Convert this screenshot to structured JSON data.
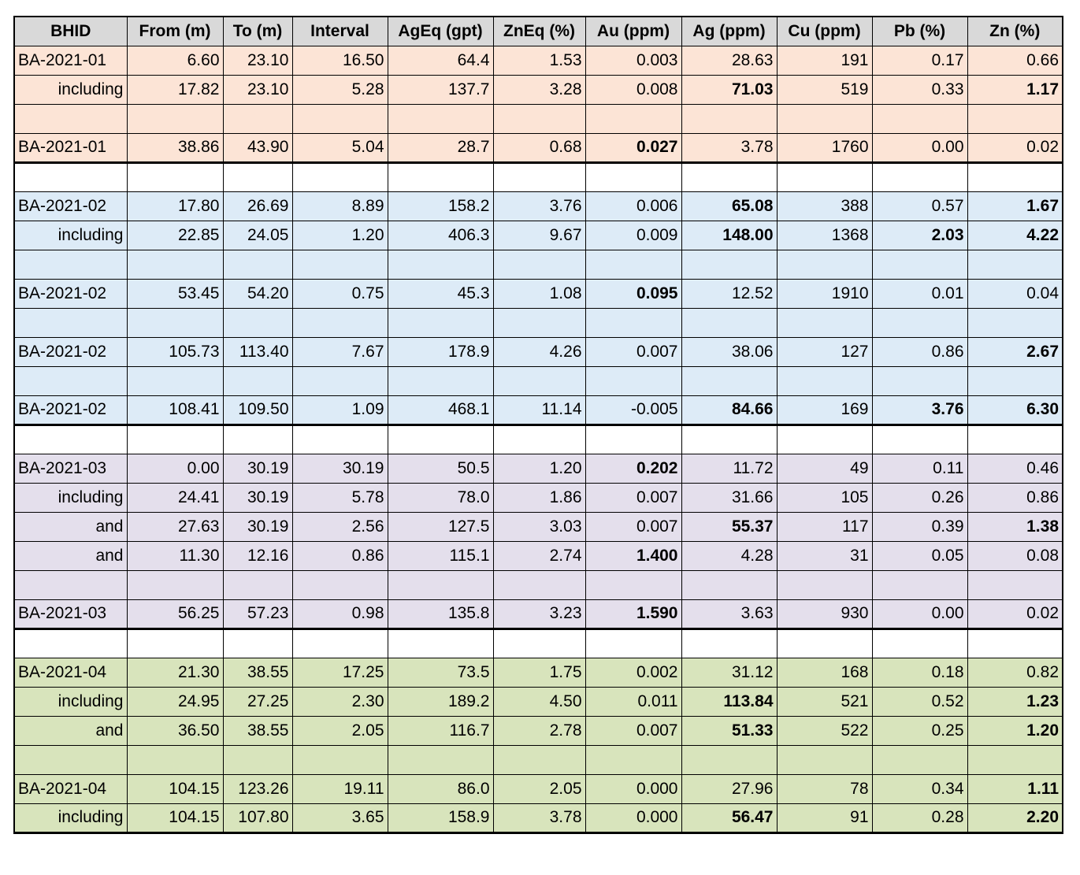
{
  "table": {
    "header": [
      "BHID",
      "From (m)",
      "To (m)",
      "Interval",
      "AgEq (gpt)",
      "ZnEq (%)",
      "Au (ppm)",
      "Ag (ppm)",
      "Cu (ppm)",
      "Pb (%)",
      "Zn (%)"
    ],
    "fills": {
      "orange": "#fce4d6",
      "blue": "#ddebf7",
      "purple": "#e4dfec",
      "green": "#d8e4bc",
      "white": "#ffffff",
      "header": "#d9d9d9"
    },
    "rows": [
      {
        "fill": "orange",
        "label_align": "left",
        "bold": [],
        "cells": [
          "BA-2021-01",
          "6.60",
          "23.10",
          "16.50",
          "64.4",
          "1.53",
          "0.003",
          "28.63",
          "191",
          "0.17",
          "0.66"
        ]
      },
      {
        "fill": "orange",
        "label_align": "right",
        "bold": [
          7,
          10
        ],
        "cells": [
          "including",
          "17.82",
          "23.10",
          "5.28",
          "137.7",
          "3.28",
          "0.008",
          "71.03",
          "519",
          "0.33",
          "1.17"
        ]
      },
      {
        "fill": "orange",
        "cells": []
      },
      {
        "fill": "orange",
        "label_align": "left",
        "bold": [
          6
        ],
        "cells": [
          "BA-2021-01",
          "38.86",
          "43.90",
          "5.04",
          "28.7",
          "0.68",
          "0.027",
          "3.78",
          "1760",
          "0.00",
          "0.02"
        ]
      },
      {
        "fill": "white",
        "cells": []
      },
      {
        "fill": "blue",
        "label_align": "left",
        "bold": [
          7,
          10
        ],
        "cells": [
          "BA-2021-02",
          "17.80",
          "26.69",
          "8.89",
          "158.2",
          "3.76",
          "0.006",
          "65.08",
          "388",
          "0.57",
          "1.67"
        ]
      },
      {
        "fill": "blue",
        "label_align": "right",
        "bold": [
          7,
          9,
          10
        ],
        "cells": [
          "including",
          "22.85",
          "24.05",
          "1.20",
          "406.3",
          "9.67",
          "0.009",
          "148.00",
          "1368",
          "2.03",
          "4.22"
        ]
      },
      {
        "fill": "blue",
        "cells": []
      },
      {
        "fill": "blue",
        "label_align": "left",
        "bold": [
          6
        ],
        "cells": [
          "BA-2021-02",
          "53.45",
          "54.20",
          "0.75",
          "45.3",
          "1.08",
          "0.095",
          "12.52",
          "1910",
          "0.01",
          "0.04"
        ]
      },
      {
        "fill": "blue",
        "cells": []
      },
      {
        "fill": "blue",
        "label_align": "left",
        "bold": [
          10
        ],
        "cells": [
          "BA-2021-02",
          "105.73",
          "113.40",
          "7.67",
          "178.9",
          "4.26",
          "0.007",
          "38.06",
          "127",
          "0.86",
          "2.67"
        ]
      },
      {
        "fill": "blue",
        "cells": []
      },
      {
        "fill": "blue",
        "label_align": "left",
        "bold": [
          7,
          9,
          10
        ],
        "cells": [
          "BA-2021-02",
          "108.41",
          "109.50",
          "1.09",
          "468.1",
          "11.14",
          "-0.005",
          "84.66",
          "169",
          "3.76",
          "6.30"
        ]
      },
      {
        "fill": "white",
        "cells": []
      },
      {
        "fill": "purple",
        "label_align": "left",
        "bold": [
          6
        ],
        "cells": [
          "BA-2021-03",
          "0.00",
          "30.19",
          "30.19",
          "50.5",
          "1.20",
          "0.202",
          "11.72",
          "49",
          "0.11",
          "0.46"
        ]
      },
      {
        "fill": "purple",
        "label_align": "right",
        "bold": [],
        "cells": [
          "including",
          "24.41",
          "30.19",
          "5.78",
          "78.0",
          "1.86",
          "0.007",
          "31.66",
          "105",
          "0.26",
          "0.86"
        ]
      },
      {
        "fill": "purple",
        "label_align": "right",
        "bold": [
          7,
          10
        ],
        "cells": [
          "and",
          "27.63",
          "30.19",
          "2.56",
          "127.5",
          "3.03",
          "0.007",
          "55.37",
          "117",
          "0.39",
          "1.38"
        ]
      },
      {
        "fill": "purple",
        "label_align": "right",
        "bold": [
          6
        ],
        "cells": [
          "and",
          "11.30",
          "12.16",
          "0.86",
          "115.1",
          "2.74",
          "1.400",
          "4.28",
          "31",
          "0.05",
          "0.08"
        ]
      },
      {
        "fill": "purple",
        "cells": []
      },
      {
        "fill": "purple",
        "label_align": "left",
        "bold": [
          6
        ],
        "cells": [
          "BA-2021-03",
          "56.25",
          "57.23",
          "0.98",
          "135.8",
          "3.23",
          "1.590",
          "3.63",
          "930",
          "0.00",
          "0.02"
        ]
      },
      {
        "fill": "white",
        "cells": []
      },
      {
        "fill": "green",
        "label_align": "left",
        "bold": [],
        "cells": [
          "BA-2021-04",
          "21.30",
          "38.55",
          "17.25",
          "73.5",
          "1.75",
          "0.002",
          "31.12",
          "168",
          "0.18",
          "0.82"
        ]
      },
      {
        "fill": "green",
        "label_align": "right",
        "bold": [
          7,
          10
        ],
        "cells": [
          "including",
          "24.95",
          "27.25",
          "2.30",
          "189.2",
          "4.50",
          "0.011",
          "113.84",
          "521",
          "0.52",
          "1.23"
        ]
      },
      {
        "fill": "green",
        "label_align": "right",
        "bold": [
          7,
          10
        ],
        "cells": [
          "and",
          "36.50",
          "38.55",
          "2.05",
          "116.7",
          "2.78",
          "0.007",
          "51.33",
          "522",
          "0.25",
          "1.20"
        ]
      },
      {
        "fill": "green",
        "cells": []
      },
      {
        "fill": "green",
        "label_align": "left",
        "bold": [
          10
        ],
        "cells": [
          "BA-2021-04",
          "104.15",
          "123.26",
          "19.11",
          "86.0",
          "2.05",
          "0.000",
          "27.96",
          "78",
          "0.34",
          "1.11"
        ]
      },
      {
        "fill": "green",
        "label_align": "right",
        "bold": [
          7,
          10
        ],
        "cells": [
          "including",
          "104.15",
          "107.80",
          "3.65",
          "158.9",
          "3.78",
          "0.000",
          "56.47",
          "91",
          "0.28",
          "2.20"
        ]
      }
    ]
  }
}
